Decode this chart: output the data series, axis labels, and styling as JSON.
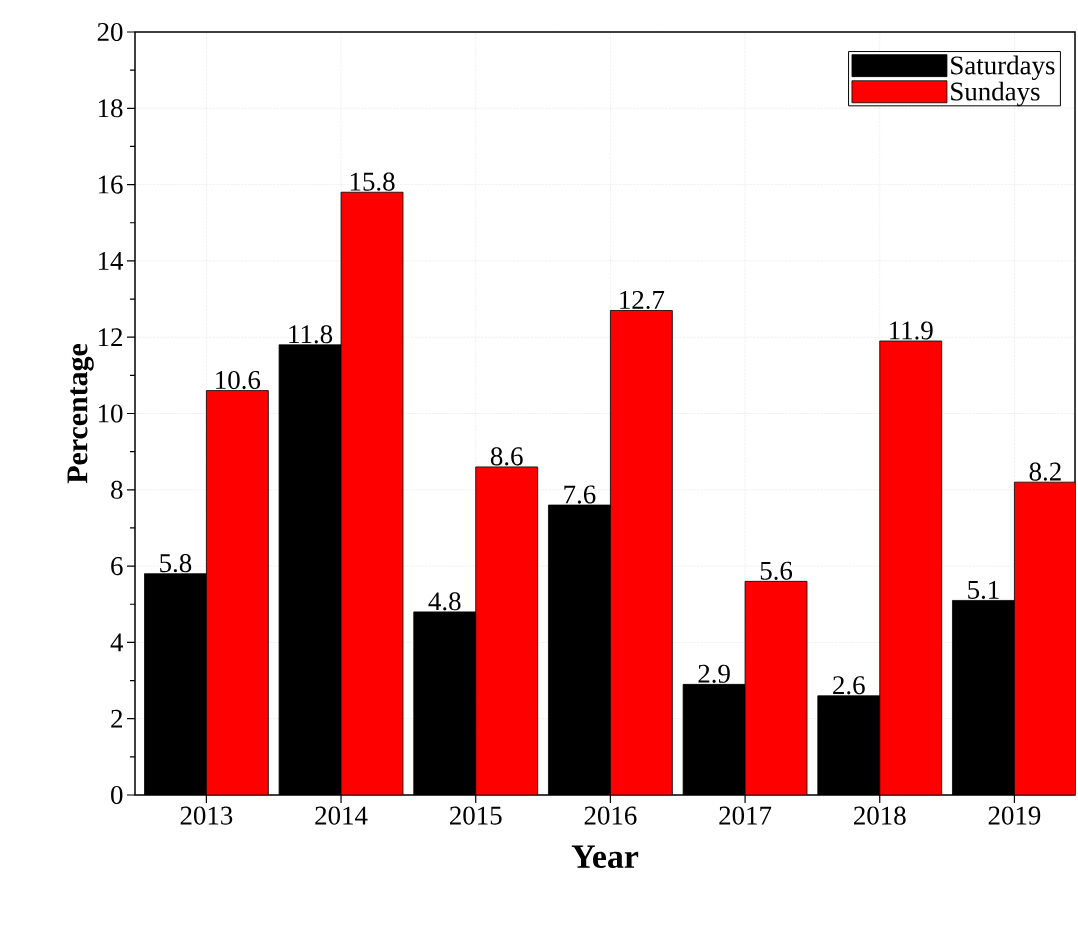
{
  "chart_data": {
    "type": "bar",
    "xlabel": "Year",
    "ylabel": "Percentage",
    "categories": [
      "2013",
      "2014",
      "2015",
      "2016",
      "2017",
      "2018",
      "2019"
    ],
    "series": [
      {
        "name": "Saturdays",
        "color": "#000000",
        "values": [
          5.8,
          11.8,
          4.8,
          7.6,
          2.9,
          2.6,
          5.1
        ]
      },
      {
        "name": "Sundays",
        "color": "#ff0000",
        "values": [
          10.6,
          15.8,
          8.6,
          12.7,
          5.6,
          11.9,
          8.2
        ]
      }
    ],
    "ylim": [
      0,
      20
    ],
    "yticks": [
      0,
      2,
      4,
      6,
      8,
      10,
      12,
      14,
      16,
      18,
      20
    ],
    "grid": true,
    "legend": "top right",
    "data_labels": true
  }
}
